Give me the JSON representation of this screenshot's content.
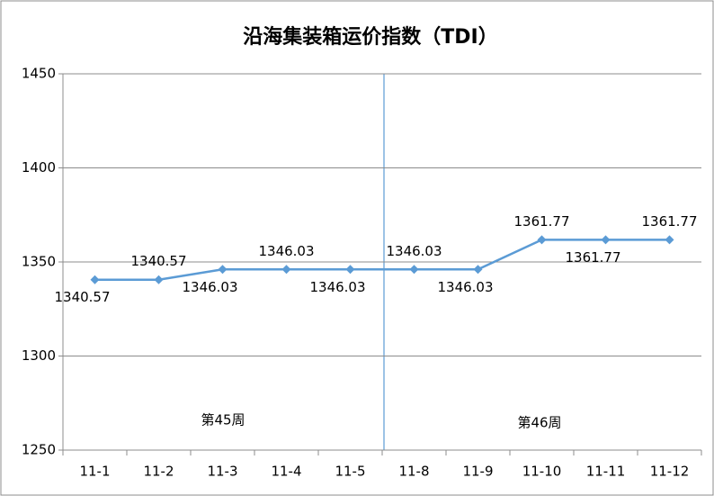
{
  "chart_data": {
    "type": "line",
    "title": "沿海集装箱运价指数（TDI）",
    "categories": [
      "11-1",
      "11-2",
      "11-3",
      "11-4",
      "11-5",
      "11-8",
      "11-9",
      "11-10",
      "11-11",
      "11-12"
    ],
    "values": [
      1340.57,
      1340.57,
      1346.03,
      1346.03,
      1346.03,
      1346.03,
      1346.03,
      1361.77,
      1361.77,
      1361.77
    ],
    "color": "#5b9bd5",
    "ylim": [
      1250,
      1450
    ],
    "yticks": [
      1250,
      1300,
      1350,
      1400,
      1450
    ],
    "grid": true,
    "annotations": [
      "第45周",
      "第46周"
    ]
  }
}
